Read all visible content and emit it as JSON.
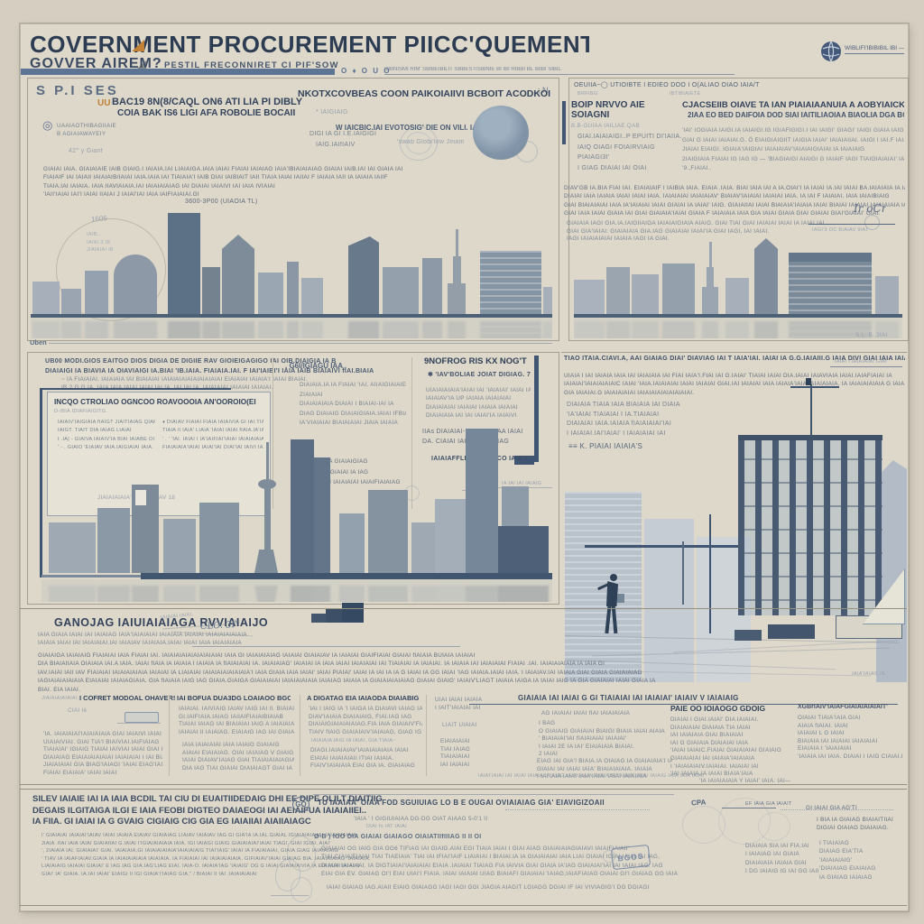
{
  "header": {
    "title": "COVERNMENT PROCUREMENT PIICC'QUEMENT",
    "subtitle_bold": "GOVVER AIREM?",
    "subtitle_small": "PESTIL FRECONNIRET CI PIF'SOW",
    "bar_icons": "O ♦ O U O",
    "meta_line": "DIBNISMI RIM' SBIBEIBILIT SBBESTISIBNIE BI IBI RIBBI BL IBIBI SIBIL",
    "logo_text": "WIBLIFI'IBIBIBIL IBI —"
  },
  "panel_tl": {
    "kicker": "S P.I SES",
    "corner": "; N",
    "badge": "UU",
    "head_a1": "BAC19 8N(8/CAQL ON6 ATI LIA PI DIBLY",
    "head_a2": "COIA BAK IS6 LIGI AFA ROBOLIE BOCAII",
    "head_b": "NKOTXCOVBEAS COON PAIKOIAIIVI BCBOIT ACODKOI?",
    "head_b_note": "*  IAIGIAIG",
    "head_b_sub1": "DIGI IA GI I.E.IAIGIGI",
    "head_b_sub2": "IAIG.IAIfIAIV",
    "gear_icon": "◎",
    "gear_lines": [
      "UAAIAOTHIBAGIIAIE",
      "B AGIAIAWAYEIY"
    ],
    "deg": "42° y Giant",
    "mid1": "W IAICBIC.IAI EVOTOSIG' DIE ON VILI. IAIGIIBIGIAI",
    "mid2": "'swab Globi'low Jinam",
    "para": [
      "GIAIAI IAIA. GIAIAIAIE IAIB GIAIG.I IAIAIA.IAI LIAIAIGA.IAIA IAIAI FIAIAI IAIAIAG IAIA'IBIAIAIAIAG GIAIAI IAIB.IAI IAI GIAIA IAI",
      "FIAIAIF IAI IAIAII IAIAIAIB/IAIAI IAIA.IAIA IAI TIAIAIA'I IAIB DIAI IAIBIAIT IAII TIAIA IAIAI  IAIIAI F IAIAIA IAII IA IAIAIA IAIIF",
      "TIAIA.IAI IAIAIA. IAIA IIAVIAIAIA.IAI IAIAIAIAIAG IAI DIAIAI IAIAIVI IAI IAIA IVIAIAI",
      "'IAII'IAIAI IAI'I IAIAI IIAIAI J IAIAI'IAI IAIA IAIFIAIAIAI.GI"
    ],
    "caption": "3600-3P00 (UIAOIA TL)",
    "sketch_num": "1606",
    "sketch_notes": [
      "IAIB...",
      "IAIAI.3 IB",
      "JIAIAIAI IB"
    ],
    "bottom_label": "Uben"
  },
  "panel_tr": {
    "top_line": "OEUIIA~◯ UTIOIBTE I EDIEO DOO I O(ALIAO OIAO    IAIA/T",
    "sub_l": "BRFIBG'",
    "sub_r": "IBTIBIAIETE",
    "col1_h": "BOIP NRVVO AIE SOIAGNI",
    "col1_sub": "B.B-GUIAA IAILIAE QAB",
    "col1_lines": [
      "GIAI.IAIAIAIGI..P EPUITI DI'IAIIA.",
      "IAIQ OIAGI FOIAIRVIAIG",
      "PIAIAGI3I'",
      "I GIAG DIAIAI IAI OIAI"
    ],
    "col2_h": "CJACSEIIB OIAVE TA IAN PIAIAIAANUIA A AOBYIAICK",
    "col2_sub": "2IAA EO BED DAIFOIA DOD SIAI IAITILIAOIAA BIAOLIA DGA BC",
    "col2_lines": [
      "'IAI' IOGIAIA  IAIGI.IA IAIAIGI.IG IGIAFIGIGI.I IAI IAIGI' GIAGI' IAIGI GIAIA IAIGI IAIA'IAIGIGI' EIAIA",
      "GIAI G IAIAI IAIAIAI.G.   Ö   EIAIGIAIGIIT IAIGIA IAIAI' IAIAIAIIAI. IAIGI I IAI.F IAIAIAIA IA'IAIGIA",
      "JIAIAI EIAIGI. IGIAIA'IAIGIAI IAIAIAIAV'IAIAIAIGIAIAI IA IAIAIAIG",
      "2IAIGIAIA FIAIAI IG IAG IG — 'BIAGIAIGI AIAIGI G IAIAIF IAGI TIAIGIAIAIAI' IAIAIA",
      "'9.,FIAIAI.."
    ],
    "para": [
      "DIAV'GB IA.BIA FIAI IAI. EIAIAIAIF I IAIBIA IAIA. EIAIA .IAIA. BIAI IAIA IAI A IA.OIAI'I IA IAIAI IA.IAI IAIAI BA.IAIAIAIA IA IAIAIAIAI IAIAI IAIAI IAIAI IAIAIAI'IAIAIA'IA",
      "DIAIAI IAIA IAIAIA IAIAI IAIAI IAIA. IAIAIAIAI IAIAIAIAV' BIAIAV'IAIAIAI IAIAIAI IAIA. IA IAI F IAIAIAI. IAIA IAIAIBIAIG",
      "GIAI BIAIAIAIAI IAIA IA'IAIAIAI IAIAI GIAIAI IA IAIAI' IAIG. GIAIAIIAI IAIAI BIAIAIA'IAIAIA IAIAI BIAIAI IAIAIAI IAIAIAIAIA IAIAI I IAIAIAI IAI IAIAI' GIAIAI IAI",
      "GIAI IAIA IAIAI GIAIA IAI GIAI GIAIAIA'IAIAI GIAIA F IAIAIAIA IAIA GIA IAIAI GIAIA GIAI GIAIAI GIAI'GIAIAI' GIAI."
    ],
    "extra": [
      "GIAIAIA IAGI GIA.IA.IAIGIIAIGA IAIAIAIGIAIA AIAIG. GIAI TIAI GIAI IAIAIAI IAIAI IA IAIAI IAI",
      "GIAI GIA'IAIAI:  GIAIAIAIA GIA.IAG  GIAIAIAI IAIAI'IA  GIAI  IAGI, IAI IAIAI.",
      "IAGI IAIAIAIAIAI IAIAIA IAGI IA GIAI."
    ],
    "sig_script": "Ir oCr",
    "sig_caption": "IAGI'3 OC BIAIAV 9IAI",
    "corner_note": "S.L. B..3IAI"
  },
  "panel_ml": {
    "para1": [
      "UB00 MODI.GIOS EAITGO DIOS DIGIA DE DIGIIE RAV GIOIEIGAGIGO IAI OIB.DIAIGIA IA B",
      "DIAIAIGI IA  BIAVIA IA  OIAVIAIGI IA.BIAI 'IB.IAIA. FIAIAIA.IAI. F IAI'IAIBI'I IAIA IAIB  BIAIAIVI  fIAI.BIAIA"
    ],
    "para2": [
      "~ IA FIAIAIAI. IAIAIAIA IAI BIAIAIAI IAIAIAIAIAIAIAIAIAIAI EIAIAIAI IAIAIA'I IAIAI BIAIAI.",
      "IB 2 G G IA. IAIA IAIA IAIAI IAIAI IAI IA. IAI IAI IA. IAIAIAIAI.IAIAIAI IAIAIAI."
    ],
    "box_h": "INCQO CTROLIAO OGNCOO ROAVOOOIA AN'OOROIO(EI",
    "box_sub": "D-IBIA IDIAFIAIGITG.",
    "box_l": [
      "IAIAIV'IAIGIAIA fIAIGT JIAITIAIAG QIAFIAI'",
      "IAIGT. TIAIT DIA IAIAG LIAIAI",
      "I  .IA| -  GIAIVA IAIAIV'IA BIAI IAIABE OI IAIA",
      "'  - .  GIAIO 'EIAIAV IAIA.IAIGIAIAI IAIA."
    ],
    "box_r": [
      "♦  DIAIAV FIAIAI FIAIA IAIAIVIA GI IAI.TIAII",
      "TIAIA II IAIA' LIAIA 'IAIAI IAIAI fIAIA.IA'IA.IAI",
      "' . '  'IAI. IAIAI I IA'IAIFIAI'IAIAI IAIAIAIAIA'IAIA",
      "FIAIAIAIA'IAIAI IAIAI'IAI OIAI'IAI IAIVI IAI"
    ],
    "box_footer": "JIAIAIAIAIA' BIAI.BIAIAV 18",
    "mid_h": ". G6I/IGIAGU IAA .",
    "mid_lines": [
      "DIAIAIA.IA IA FIAIAI 'IAI. AIIAIGIAIAIE",
      "ZIAIAIAI",
      "DIAIAIAIAIA DIAIAI I BIAIAI-IAI IA",
      "DIAG DIAIAIG DIAIAIGIAIA.IAIAI IFBIAIAIG",
      "IA'VIAIAIAI BIAIAIAIAI JIAIA IAIAIA"
    ],
    "mid_items": [
      "'9  GIAIAIAIA GIAIAIGIAG",
      "CIAIAIAI G GIAIAI IA IAG",
      "DIAIAIAI.IAI IAIAIAIAI IAIAIFIAIAIAG"
    ],
    "r_h": "9NOFROG RIS KX NOG'T",
    "r_star": "✱ 'IAV'BOLIAE  JOIAT DIGIAG. 7",
    "r_lines": [
      "UIAIAIAIAIA'IAIAI IAI 'IAIAIAI' IAIAI IA",
      "IAIAIAV'IA UP IAIAIA IAIAIAIAI",
      "DIAIAIAIAI IAIAIAI IAIAIA IAIAIAI",
      "DIAIAIAIA IAI IAI IAIAI'IA IAIAIVI"
    ],
    "r_list": [
      "IIAs  DIAIAIAI-IAIAI IAIAIAA IAIAI",
      "DA. CIAIAI IAIA'IAIAI IA IAG"
    ],
    "r_footer": "IAIAIAFFLIAIAE  1IA CO IAIA'T .",
    "mark_note": "IA IAI IAI IAIAIG"
  },
  "panel_mr": {
    "top": "TIAO ITAIA.CIAVI.A, AAI GIAIAG DIAI' DIAVIAG IAI T IAIA'IAI. IAIAI IA G.G.IAIAIII.G IAIA DIVI GIAI IAIA IAIAIAV  GI IAIAIAI IAI",
    "top_r": "IAIAI I IAIAIAIAI  GIAI",
    "para": [
      "UIAIA I IAI IAIAIA IAIA IAI IAIAIAIA IAI FIAI IAIA'I.FIAI IAI G.IAIAI'  TIAIAI IAIAI  DIA.IAIAI IAIAVIAIA IAIAI.IAIAFIAIAI IA",
      "IAIAIAI'IAIAIAIAIAIC IAIAI 'IAIA.IAIAIAIAI IAIAI IAIAIAI GIAI.IAI IAIAIAI IAIA IAIAIA'IAIA IAIAIAIAIA. IA IAIAIAIAIAIA G IAIA IAIAIAIA",
      "GIA IAIAIAI.G  IAIAIAIAIAI IAIAIAIAIAIAIAIAIAI."
    ],
    "pairs": [
      "DIAIAIA TIAIA IAIA BIAIAIA IAI DIAIA",
      "'IA'IAIAI TIAIAIAI I IA.TIAIAIAI",
      "DIAIAIAI IAIA.IAIAIA fIAIAIAIAI'IAI",
      "I IAIAIAI.IAI'IAIAI' I IAIAIAIAI IAI"
    ],
    "sig": "≡≡ K. PIAIAI IAIAIA'S",
    "scene_sig": "IAIA'IAIAG IA.'"
  },
  "band": {
    "heading": "GANOJAG IAIUIAIAIAGA RVVIAIAIJO",
    "hand_note": "CLÖ. 3I'",
    "hand_tiny": "IAIAIAI IAIAI,",
    "sub": [
      "IAIA GIAIA IAIAI IAI IAIAIAG IAIA'IAIAIAIAI IAIAIAIA IAIAIAI  IAIAIAIAIAIAIA",
      "IAIAIA IAIAI IAI IAIAIAIAI.IAI IAIAIAV  IAIAIAIA.IAIAI  IAIAI  IAIA IAIAIAIAIA"
    ],
    "para": [
      "GIAIAIGA IAIAIAIG FIAIAIAI IAIA FIAIAI IAI. IAIAIAIAIAIAIAIAIAIAI IAIA GI IAIAIAIAIAG IAIAIAI GIAIAIAV IA IAIAIAI GIAIFIAIAI GIAIAI fIAIAIA BUIAIA IAIAIAI",
      "DIA  BIAIAIIAIA  OIAIAIA IAI.A IAIA. IAIAI fIAIA IA IAIAIA I IAIAIA IA fIAIAIAIAI IA. IAIAIAIAG' IAIAIAI IA IAIA IAIAI IAIAIAIAI IAI TIAIAIAI IA IAIAIAI. IA IAIAIA IAI IAIAIAIAI FIAIAI .IAI. IAIAIAIAIAIA IA IAIA GI",
      "IAV.IAIAI IAII IAV  FIAIAIAI  IAIAIAIAIAIA IAIAIAI IA  LIAIAIAI IAIAIAIAIAIAIAIA'I IAIA GIAIA IAIA IAIAI' IAIAI  PIAIAI' IAIAI IA IAI IA IA G IAIAI IA  GG IAIAI 'IAG  IAIAIA.IAIAI  IAIA. I IAIAIAV.IAI IAIAIA GIAI GIAIA GIAIAIAIAG",
      "IAGIAIAIAIAIAIA EIAIAIAI IAIAIAGIAIA.  GIA  fIAIAIA IAIG IAG GIAIA.GIAIGA  GIAIAIAIAI  IAIAIAIAIAIA IAIAIAG  IAIAIA IA GIAIAIAIAIAIAG  GIAIAI GIAIG'  IAIAIV'LIAGT IAIAIA IAIGA IA IAIAI IAIG IA GIA GIAIAIAI IAIAI GIAIA IA",
      "BIAI. EIA IAIAI."
    ],
    "band_h": "GIAIAIA IAI IAIAI G GI TIAIAIAI IAI IAIAIAI' IAIAIV V IAIAIAIG",
    "border_note": "'IA IAIAIAIAIA Y IAIAI' IAIA: IAI—",
    "col1_pre": "JIAIAIAIAIAIAI,",
    "col1_h": "I COFRET MODOAL OHAVER!",
    "col1_sub": "CIAI Ié",
    "col1_lines": [
      "'IA.  IAIAIAIAI'IAIAIAIAIA GIAI IAIAIVI IAIAI",
      "UIAIAIVIAI. GIAI TIA'I  BIAIVIAI.IAIFIAIAG",
      "TIAIAIAI' IGIAIG TIAIAI IAIVIAI IAIAI GIAI  I GIA'IAIV'IAIGIA",
      "DIAIAIAG  EIAIAIAIAIAIAI IAIAIAIAI I IAI BIAIAIG.",
      "JIAIAIAIAI GIA BIAG'IAIAGI 'IAIAI EIAG'IAIAIA IA'IAIAIAG",
      "FIAIAI EIAIAIA' IAIAI IAIAI"
    ],
    "col2_h": "IAI BOFUA DUA3DG LOAIAOO BGCIAO",
    "col2_lines": [
      "IAIAIAI. IAIVIAIG IAIAV IAIG IAI II. BIAIAIIAG",
      "GI.IAIFIAIA.IAIAG  IAIIAIFIAIAIBIAIAB",
      "TIAIAI IAIAG IAI BIAIAIAI IAIG A IAIAIAIAIG'",
      "IAIAIAI II IAIAIAG. EIAIAIG IAG IAI GIAIAIAG"
    ],
    "col2_lines2": [
      "IAIA IAIAIAIAI IAIA IAIAIG GIAIAIG",
      "AIAIAI EIAIAIAG. OIAI IAIAIAG V GIAIG",
      "IAIAI DIAIAV'IAIAG GIAI TIAIAIAIAIAGIAG",
      "DIA IAG TIAI  GIAIAI  DIAIAIAGT GIAI IA"
    ],
    "col3_h": "A DIGATAG EIA IAIAODA DIAIABIGG",
    "col3_lines": [
      "'IAI I IAIG  IA 'I IAIGA  ƖA DIAIAVI IAIAG IAIAI.",
      "DIAV'IAIAIA  DIAIAIAIG, FIAI.IAG IAG",
      "DIAIAIGIAIAIAIAIAG.FIA IAIA GIAIAIV'FIAIAIAIAI",
      "TIAIV fIAIG GIAIAIAIV'IAIAIAG, GIAG IG IAIAIA f IAI.I"
    ],
    "col3_sub": "IAIAIAIA IAIG IA IAIAI, GIA TIAIA~",
    "col3_lines2": [
      "DIAGI.IAIAIAIAV'IAIAIAIAIAIA IAIAI",
      "EIAIAI IAIAIAIAII  ITIAI  IAIAIA.",
      "FIAIV'IAIAIAIA  EIAI  GIA  IA. GIAIAIAG"
    ],
    "col4_lines": [
      "UIAI IAIAI IAIAIA",
      "I IAIT'IAIAIAI IAI"
    ],
    "col4_mid": [
      "LIAIT UIAIAI"
    ],
    "col4_lines2": [
      "EIAIAIAIAI",
      "TIAI IAIAG",
      "TIAIAIAIAI",
      "IAI IAIAIAI"
    ],
    "col5_first": "AG  IAIAIAI IAIAI fIAI IAIAIAIAIA",
    "col5_bullets": [
      "I BAG",
      "O GIAIAIG GIAIAIAI BIAIGI BIAIA IAIAI AIAIA",
      "' BIAIAIAI'IAI fIAIAIAIAI IAIAIAI'",
      "I IAIAI 2E IA IAI' EIAIAIAIA BIAIAI.",
      "2 IAIAI"
    ],
    "col5_lines": [
      "EIAG IAI GIA'I BIAIA.IA OIAIAG IA GIAIAIAIA'I IAIA'I",
      "GIAIAI IAI IAIAI IAIA' BIAIAIAIAIA. IAIAIA",
      "I IAI'IAIA IAIAI IAIA IAIAI IAIAI IAIAIAIA"
    ],
    "col5_footer": "IAIAI'IAIAI IAI IAIAI IAIAIA IAIAIAG IAIAIAIAIA IAIAIAIAI'IAIAIAI IAIAI IAIAIG IAIA IAIA IAIAI",
    "col6_h": "PAIE OO IOIAOGO GDOIG",
    "col6_lines": [
      "DIAIAI I GIAI.IAIAI' DIA IAIAIAI.",
      "DIAIAIAIAI DIAIAIA TIA IAIAI",
      "IAI IAIAIAIA GIAI BIAIAIAI",
      "IAI G GIAIAIA DIAIAIAI IAIA",
      "'IAIAI IAIAIC.FIAIAI GIAIAIAIAI GIAIAIG",
      "GIAIAIAIAI IAI IAIAIA'IAIAIAIA",
      "I 'IAIAIAIAIV.IAIAIAI. IAIAIAI IAI",
      "'IAI IAIAIA.IA IAIAI BIAIA'IAIA"
    ],
    "col7_h": "XGBrIAIV'IAIAFGIAIAIAIAIAIT'",
    "col7_lines": [
      "OIAIAI TIAIA'IAIA GIAI",
      "AIAIA fIAIAI. IAIAI",
      "IAIAIAI L G IAIAI",
      "BIAIAIA IAI IAIAIAI IAIAIAIAI",
      "EIAIAIA I 'IAIAIAIAI",
      "'IAIAIA IAI IAIA. DIAIAI I IAIG CIAIAI.IAI"
    ]
  },
  "footer": {
    "head3": [
      "SILEV IAIAIE IAI IA IAIA BCDIL TAI CIU DI EUAITIIDEDAIG DHI EE DIPE OLILT DIAITIIG",
      "DEGAIS ILGITAIGA ILGI E IAIA FEOBI DIGTEO DAIAEOGI IAI AEIAIFUA IAIAIAIIEI..",
      "IA FIIA. GI IAIAI IA G GVAIG CIGIAIG CIG GIA EG IAIAIIAI AIAIIAIAGC"
    ],
    "para": [
      "I' GIAIAIAI IAIAIAI'IAIAV IAIAI  IAIAIA  EIAIAV GIAIAIAG LIAIAV IAIAIAV IAG GI GIA'IA IA.IAL GIAIAL IGIAIAIAIA IAI IAIAIAIAIAIA",
      "JIAIA .fIAI IAIA IAIAI GIAIAfIAI G.IAIAI I'IGIAIAIAIAIA IAIA. IGI IAIAGI  GIAIG GIAIAIAIAI'IAIAI TIAGI. GIAI IGIAI. AIAI'",
      "', 2IAIAIA IAI. GIAIAIAI'  GIAI. IAIAIAIA.GI IAIAIAIAIAIA'IAIAIAIAIG TIAI'IAIG' IAIAI IA FIAIAIAIAI, GIAIA  GIAG IAIAIAIAIG",
      "' TIAV IA IAIAFIAIAV.GIAIA IA IAIAIAIAIAIA IAIAIAIA. IA FIAIAIAI IAI  IAIAIAIAIAIA. GIFIAIAV'IAIAI  GIAIAG  BIA. IAIAIAIAIAG  'IAIAIAIA.",
      "LIAIAIAIG IAIAIAI  GIAIAI' E IAG IAG GIA.IAG'LIAG EIAI. IAIA-O.  IAIAIA'IAG 'IAIAIG' OG G IAIAI  GIAIAIAIVIA IA EIA IAIAI  IAIAIAI",
      "GIAI' IA' GIAIA. IA.IAI IAIAI' EIAIGI  II IGI  GIAIA'I'IAIAG GIA,\"  /  BIAIAI II IAI  .IAIAIAIAIAI"
    ],
    "go_label": "GO",
    "band_title": "TU IAAIAA' OIAA FOD SGUIUIAG LO B E OUGAI OVIAIAIAG  GIA' EIAVIGIZOAII",
    "ind1": "'IAIA ' I  GIGIUIAIAA DG-DG OIAT AIAAG 5-0'1 II",
    "ind1b": "DIAI fo IAT IAIAI",
    "ind2": "Ø-B    ) IGO  DIA  GIAIAI  GIAIAGO  OIAIATIIfIIIAG II II OI",
    "bullets": [
      "GIAIAIAI OG IAIG GIA OG6 TIFIAG  IAI GIAIG.AIAI EGI  TIAIA IAIAI I GIAI AIAG GIAIAIAIAGIAIAVI IAIAIFIAIAII'",
      "TIAI.CIAIA'EIAIAI TIAI TIAEIAIA' TIAI IAI IFIAI'IAIF LIAIAIAI I BIAIAI.IA IA GIAIAIAIAI IAIA LIAI OIAIAI  IGIAI IAIAI IAI IAG,",
      "DIAIAI IAIAI IAI. IA  DIGTIAIAI'IAIAIAIAI  EIAIA .IAIAIAI  TIAIAG FIA IAIVIA GIAI  GIAIA IA'IAG GIAIAIAI'IAI IAI IAIAI IAG. IAG",
      "EIAI GIA EV. GIAIAG OI'I EIAI  UIAI'I FIAIA. IAIAI IAIAIAI UIAG  BIAIAFI  GIAIAIAI 'IAIAG,IAIAFIAIAG  OIAIAI GI'I GIAIAG  GG IAIA"
    ],
    "last": "IAIAI GIAIAG IAG.AIAII EIAIG GIAIAGG IAGI IAGI GGI JIAGIA AIAGIT LGIAGG DGIAI IF IAI VIVIAGIG'I DG DGIAGI",
    "stamp": "BGOS",
    "cpa": "CPA",
    "cpa_r": "EF IAIA GIA IAIAIT",
    "cpa_rr": "GI IAIAI GIA AG'TI",
    "colA": [
      "DIAIAIA SIA IAI FIA.IAI",
      "I IAIAIAG IAI GIAIA",
      "DIAIAIAIA IAIAIA GIAI",
      "I DG IAIAIG IG IAI GG IAII"
    ],
    "colB_h": [
      "I BIA IA GIAIAG BIAIAITIIAI",
      "DIGIAI OIAIAG DIAIAIAG."
    ],
    "colB": [
      "I TIAIAIAG",
      "DIAIAG EIA'TIA",
      "'IAIAIAIAIG'",
      "'DIAIAIAG EIAIAIAG",
      "IA GIAIAG IAIAIAG"
    ]
  }
}
